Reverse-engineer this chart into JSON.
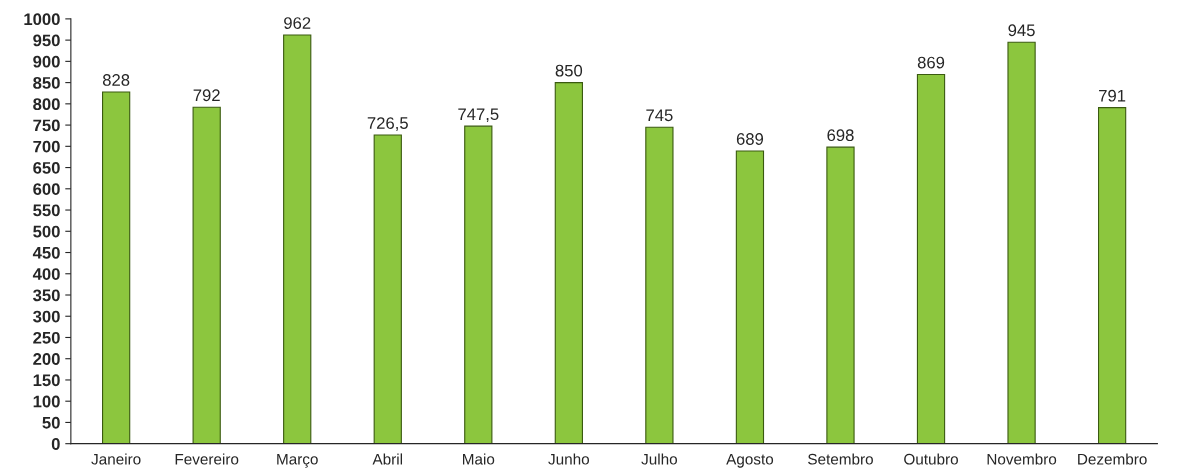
{
  "chart_data": {
    "type": "bar",
    "categories": [
      "Janeiro",
      "Fevereiro",
      "Março",
      "Abril",
      "Maio",
      "Junho",
      "Julho",
      "Agosto",
      "Setembro",
      "Outubro",
      "Novembro",
      "Dezembro"
    ],
    "values": [
      828,
      792,
      962,
      726.5,
      747.5,
      850,
      745,
      689,
      698,
      869,
      945,
      791
    ],
    "value_labels": [
      "828",
      "792",
      "962",
      "726,5",
      "747,5",
      "850",
      "745",
      "689",
      "698",
      "869",
      "945",
      "791"
    ],
    "color": "#8cc63e",
    "ylim": [
      0,
      1000
    ],
    "yticks": [
      0,
      50,
      100,
      150,
      200,
      250,
      300,
      350,
      400,
      450,
      500,
      550,
      600,
      650,
      700,
      750,
      800,
      850,
      900,
      950,
      1000
    ],
    "grid": false
  }
}
